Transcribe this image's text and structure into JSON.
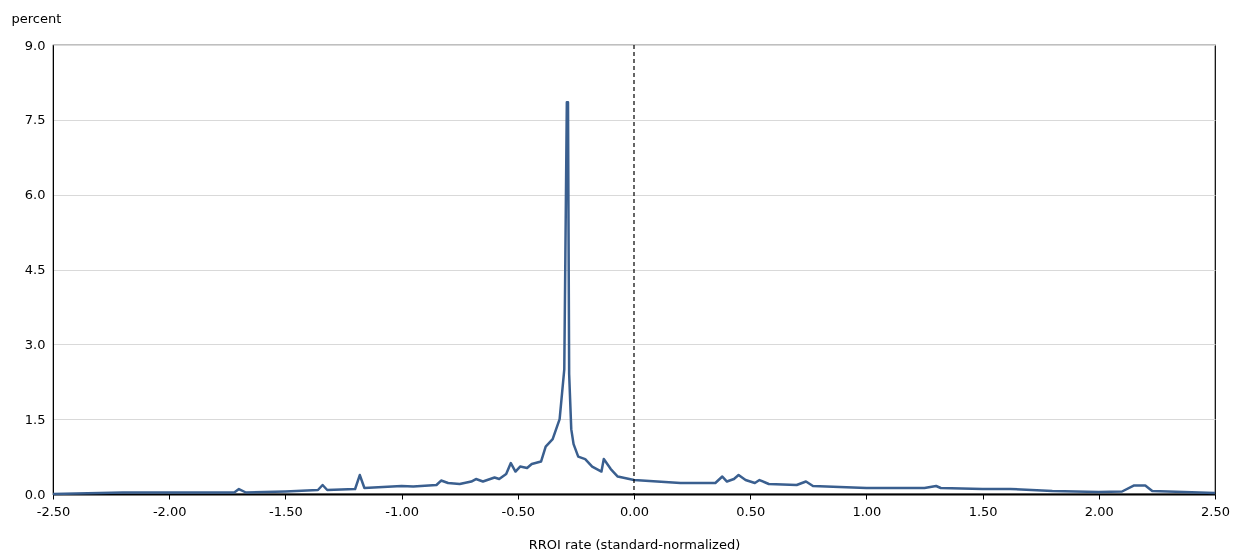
{
  "chart_data": {
    "type": "line",
    "xlabel": "RROI rate (standard-normalized)",
    "ylabel": "percent",
    "x": [
      -2.5,
      -2.2,
      -1.72,
      -1.7,
      -1.67,
      -1.5,
      -1.36,
      -1.34,
      -1.32,
      -1.2,
      -1.18,
      -1.16,
      -1.0,
      -0.95,
      -0.85,
      -0.83,
      -0.8,
      -0.75,
      -0.7,
      -0.68,
      -0.65,
      -0.6,
      -0.58,
      -0.55,
      -0.53,
      -0.51,
      -0.49,
      -0.46,
      -0.44,
      -0.4,
      -0.38,
      -0.35,
      -0.32,
      -0.3,
      -0.289,
      -0.284,
      -0.279,
      -0.27,
      -0.26,
      -0.24,
      -0.21,
      -0.18,
      -0.14,
      -0.13,
      -0.1,
      -0.07,
      0.0,
      0.2,
      0.35,
      0.38,
      0.4,
      0.43,
      0.45,
      0.48,
      0.52,
      0.54,
      0.58,
      0.7,
      0.74,
      0.77,
      1.0,
      1.25,
      1.3,
      1.32,
      1.5,
      1.62,
      1.8,
      2.0,
      2.1,
      2.15,
      2.2,
      2.23,
      2.5
    ],
    "series": [
      {
        "color": "#3a5f8f",
        "values": [
          0.0,
          0.03,
          0.03,
          0.1,
          0.03,
          0.05,
          0.08,
          0.18,
          0.08,
          0.1,
          0.38,
          0.12,
          0.16,
          0.15,
          0.18,
          0.27,
          0.22,
          0.2,
          0.25,
          0.3,
          0.25,
          0.33,
          0.3,
          0.4,
          0.62,
          0.45,
          0.55,
          0.52,
          0.6,
          0.65,
          0.95,
          1.1,
          1.5,
          2.5,
          7.85,
          7.85,
          2.4,
          1.3,
          1.0,
          0.75,
          0.7,
          0.55,
          0.45,
          0.7,
          0.5,
          0.35,
          0.28,
          0.22,
          0.22,
          0.35,
          0.25,
          0.3,
          0.38,
          0.28,
          0.22,
          0.28,
          0.2,
          0.18,
          0.25,
          0.16,
          0.12,
          0.12,
          0.16,
          0.12,
          0.1,
          0.1,
          0.06,
          0.04,
          0.05,
          0.17,
          0.17,
          0.06,
          0.02
        ]
      }
    ],
    "xlim": [
      -2.5,
      2.5
    ],
    "xticks": [
      {
        "value": -2.5,
        "label": "-2.50"
      },
      {
        "value": -2,
        "label": "-2.00"
      },
      {
        "value": -1.5,
        "label": "-1.50"
      },
      {
        "value": -1,
        "label": "-1.00"
      },
      {
        "value": -0.5,
        "label": "-0.50"
      },
      {
        "value": 0,
        "label": "0.00"
      },
      {
        "value": 0.5,
        "label": "0.50"
      },
      {
        "value": 1,
        "label": "1.00"
      },
      {
        "value": 1.5,
        "label": "1.50"
      },
      {
        "value": 2,
        "label": "2.00"
      },
      {
        "value": 2.5,
        "label": "2.50"
      }
    ],
    "ylim": [
      0,
      9
    ],
    "yticks": [
      {
        "value": 0,
        "label": "0.0"
      },
      1.5,
      {
        "value": 3,
        "label": "3.0"
      },
      4.5,
      {
        "value": 6,
        "label": "6.0"
      },
      7.5,
      {
        "value": 9,
        "label": "9.0"
      }
    ],
    "grid": "y",
    "ref_lines": [
      {
        "axis": "x",
        "value": 0,
        "color": "#000000",
        "line_style": "dashed"
      }
    ]
  }
}
